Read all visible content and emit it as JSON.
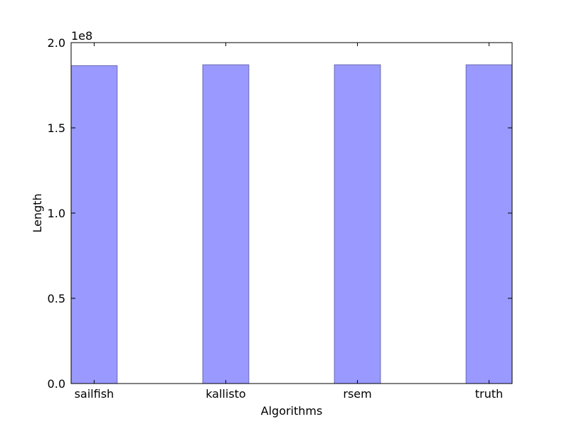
{
  "chart_data": {
    "type": "bar",
    "categories": [
      "sailfish",
      "kallisto",
      "rsem",
      "truth"
    ],
    "values": [
      186500000,
      187000000,
      187000000,
      187000000
    ],
    "xlabel": "Algorithms",
    "ylabel": "Length",
    "y_offset_label": "1e8",
    "y_scale_factor": 100000000,
    "ylim": [
      0,
      200000000
    ],
    "yticks": [
      0,
      50000000,
      100000000,
      150000000,
      200000000
    ],
    "ytick_labels": [
      "0.0",
      "0.5",
      "1.0",
      "1.5",
      "2.0"
    ],
    "grid": false,
    "legend": "none",
    "colors": {
      "bar_fill": "#9999ff",
      "bar_edge": "#6b6bb3",
      "axes": "#000000",
      "background": "#ffffff"
    }
  }
}
